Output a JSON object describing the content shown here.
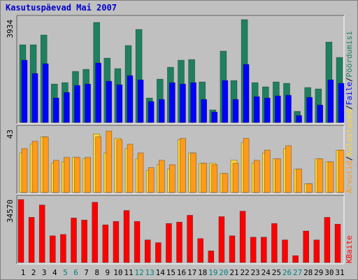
{
  "chart_data": [
    {
      "type": "bar",
      "title": "Kasutuspäevad Mai 2007",
      "ylim": [
        0,
        3934
      ],
      "legend_separator": "/",
      "series": [
        {
          "name": "Pöördumisi",
          "color": "#1f8060",
          "values": [
            2971,
            2971,
            3345,
            1472,
            1525,
            1954,
            2034,
            3827,
            2462,
            2061,
            2944,
            3559,
            937,
            1659,
            2114,
            2382,
            2408,
            1552,
            482,
            2730,
            1606,
            3934,
            1525,
            1365,
            1552,
            1499,
            428,
            1338,
            1285,
            3077,
            2489
          ]
        },
        {
          "name": "Faile",
          "color": "#0000ff",
          "values": [
            2382,
            1873,
            2248,
            937,
            1151,
            1418,
            1472,
            2275,
            1579,
            1445,
            1793,
            1632,
            803,
            883,
            1525,
            1472,
            1525,
            883,
            401,
            1606,
            883,
            2221,
            990,
            937,
            1017,
            1044,
            268,
            963,
            669,
            1632,
            1499
          ]
        }
      ]
    },
    {
      "type": "bar",
      "ylim": [
        0,
        43
      ],
      "series": [
        {
          "name": "Külastused",
          "color": "#ffd633",
          "values": [
            27,
            33,
            38,
            20,
            21,
            24,
            23,
            40,
            27,
            37,
            30,
            23,
            15,
            19,
            16,
            36,
            27,
            20,
            20,
            13,
            22,
            34,
            20,
            27,
            23,
            30,
            16,
            6,
            23,
            21,
            29
          ]
        },
        {
          "name": "Arvutid",
          "color": "#ff9a1a",
          "values": [
            30,
            35,
            38,
            22,
            24,
            24,
            24,
            38,
            42,
            36,
            33,
            27,
            17,
            22,
            19,
            37,
            27,
            20,
            19,
            13,
            20,
            37,
            22,
            29,
            23,
            32,
            16,
            6,
            23,
            21,
            29
          ]
        }
      ]
    },
    {
      "type": "bar",
      "ylim": [
        0,
        34570
      ],
      "highlight_color": "#008080",
      "highlight_indices": [
        4,
        5,
        11,
        12,
        18,
        19,
        25,
        26
      ],
      "categories": [
        "1",
        "2",
        "3",
        "4",
        "5",
        "6",
        "7",
        "8",
        "9",
        "10",
        "11",
        "12",
        "13",
        "14",
        "15",
        "16",
        "17",
        "18",
        "19",
        "20",
        "21",
        "22",
        "23",
        "24",
        "25",
        "26",
        "27",
        "28",
        "29",
        "30",
        "31"
      ],
      "series": [
        {
          "name": "KBaite",
          "color": "#ff0000",
          "values": [
            34570,
            24800,
            31570,
            14660,
            15410,
            24430,
            23300,
            33070,
            20670,
            22550,
            28560,
            22550,
            12400,
            10900,
            21420,
            22170,
            25930,
            13150,
            6390,
            25180,
            14660,
            28190,
            13900,
            13900,
            21420,
            12400,
            3760,
            17290,
            12400,
            24800,
            21040
          ]
        }
      ]
    }
  ]
}
